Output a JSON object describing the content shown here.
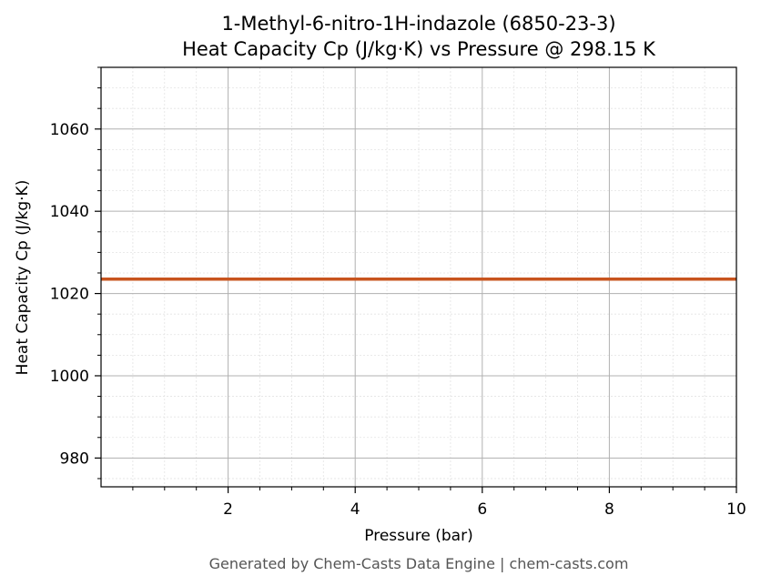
{
  "chart_data": {
    "type": "line",
    "title_line1": "1-Methyl-6-nitro-1H-indazole (6850-23-3)",
    "title_line2": "Heat Capacity Cp (J/kg·K) vs Pressure @ 298.15 K",
    "xlabel": "Pressure (bar)",
    "ylabel": "Heat Capacity Cp (J/kg·K)",
    "xlim": [
      0,
      10
    ],
    "ylim": [
      973,
      1075
    ],
    "x_ticks": [
      2,
      4,
      6,
      8,
      10
    ],
    "y_ticks": [
      980,
      1000,
      1020,
      1040,
      1060
    ],
    "x_minor_step": 0.5,
    "y_minor_step": 5,
    "grid": true,
    "series": [
      {
        "color": "#c8541e",
        "x": [
          0,
          10
        ],
        "y": [
          1023.5,
          1023.5
        ]
      }
    ],
    "footer": "Generated by Chem-Casts Data Engine | chem-casts.com"
  }
}
